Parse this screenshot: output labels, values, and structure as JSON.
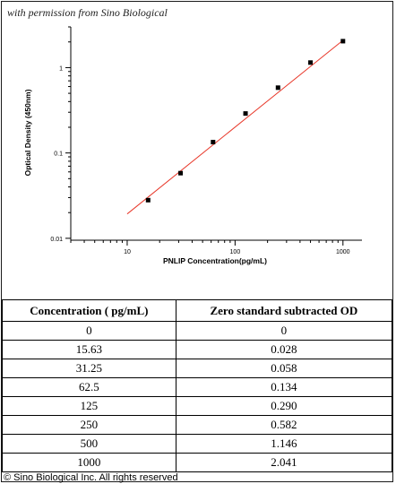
{
  "permission_text": "with permission from Sino Biological",
  "chart_data": {
    "type": "scatter",
    "xlabel": "PNLIP  Concentration(pg/mL)",
    "ylabel": "Optical Density (450nm)",
    "x_scale": "log",
    "y_scale": "log",
    "xlim": [
      3,
      1500
    ],
    "ylim": [
      0.0095,
      3
    ],
    "x_ticks": [
      10,
      100,
      1000
    ],
    "x_tick_labels": [
      "10",
      "100",
      "1000"
    ],
    "y_ticks": [
      0.01,
      0.1,
      1
    ],
    "y_tick_labels": [
      "0.01",
      "0.1",
      "1"
    ],
    "points": [
      {
        "x": 15.63,
        "y": 0.028
      },
      {
        "x": 31.25,
        "y": 0.058
      },
      {
        "x": 62.5,
        "y": 0.134
      },
      {
        "x": 125,
        "y": 0.29
      },
      {
        "x": 250,
        "y": 0.582
      },
      {
        "x": 500,
        "y": 1.146
      },
      {
        "x": 1000,
        "y": 2.041
      }
    ],
    "fit_line": {
      "color": "#e8382a",
      "x_start": 10,
      "y_start": 0.0193,
      "x_end": 1000,
      "y_end": 2.09
    },
    "marker_color": "#000000",
    "grid": false
  },
  "table": {
    "headers": [
      "Concentration ( pg/mL)",
      "Zero standard subtracted OD"
    ],
    "rows": [
      [
        "0",
        "0"
      ],
      [
        "15.63",
        "0.028"
      ],
      [
        "31.25",
        "0.058"
      ],
      [
        "62.5",
        "0.134"
      ],
      [
        "125",
        "0.290"
      ],
      [
        "250",
        "0.582"
      ],
      [
        "500",
        "1.146"
      ],
      [
        "1000",
        "2.041"
      ]
    ]
  },
  "copyright": "© Sino Biological Inc. All rights reserved"
}
